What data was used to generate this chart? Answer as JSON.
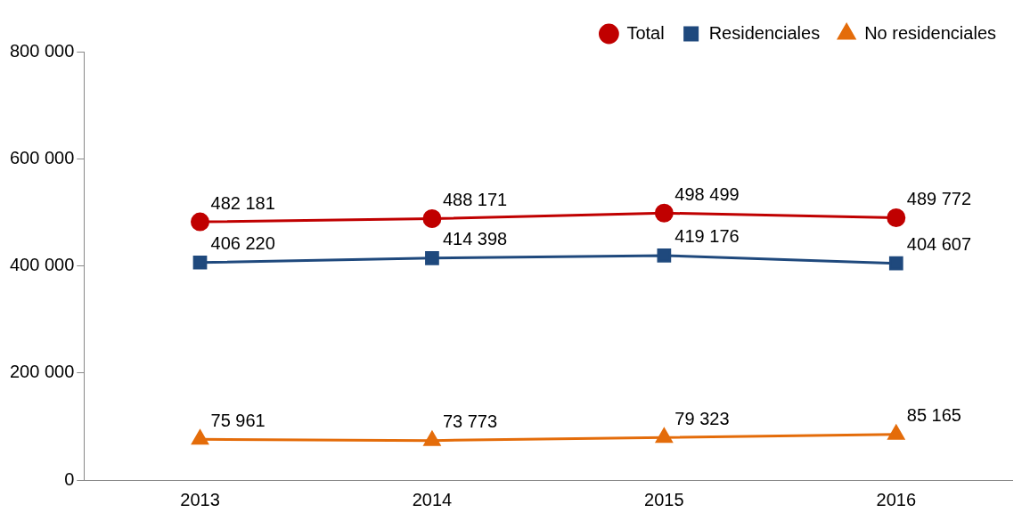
{
  "chart_data": {
    "type": "line",
    "categories": [
      "2013",
      "2014",
      "2015",
      "2016"
    ],
    "series": [
      {
        "name": "Total",
        "color": "#c00000",
        "marker": "circle",
        "values": [
          482181,
          488171,
          498499,
          489772
        ]
      },
      {
        "name": "Residenciales",
        "color": "#1f497d",
        "marker": "square",
        "values": [
          406220,
          414398,
          419176,
          404607
        ]
      },
      {
        "name": "No residenciales",
        "color": "#e46c0a",
        "marker": "triangle",
        "values": [
          75961,
          73773,
          79323,
          85165
        ]
      }
    ],
    "ylim": [
      0,
      800000
    ],
    "yticks": [
      {
        "value": 0,
        "label": "0"
      },
      {
        "value": 200000,
        "label": "200 000"
      },
      {
        "value": 400000,
        "label": "400 000"
      },
      {
        "value": 600000,
        "label": "600 000"
      },
      {
        "value": 800000,
        "label": "800 000"
      }
    ],
    "grid": false,
    "legend": "top right",
    "data_labels": true,
    "line_style": "solid"
  }
}
